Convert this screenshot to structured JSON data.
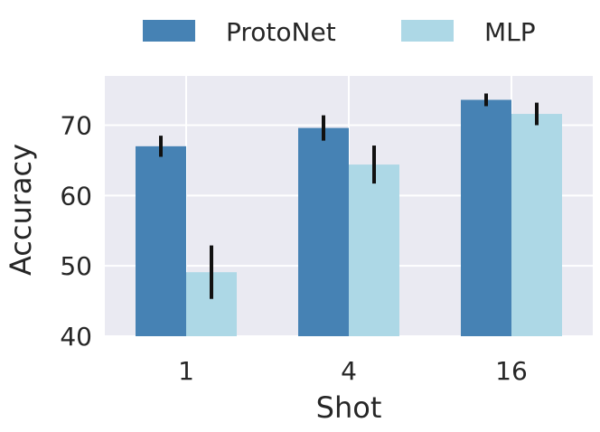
{
  "chart_data": {
    "type": "bar",
    "xlabel": "Shot",
    "ylabel": "Accuracy",
    "categories": [
      "1",
      "4",
      "16"
    ],
    "ylim": [
      40,
      77
    ],
    "yticks": [
      40,
      50,
      60,
      70
    ],
    "grid": true,
    "legend_position": "top",
    "series": [
      {
        "name": "ProtoNet",
        "color": "#4682b4",
        "values": [
          67.0,
          69.6,
          73.6
        ],
        "error": [
          1.5,
          1.8,
          0.9
        ]
      },
      {
        "name": "MLP",
        "color": "#add8e6",
        "values": [
          49.1,
          64.4,
          71.6
        ],
        "error": [
          3.8,
          2.7,
          1.6
        ]
      }
    ],
    "plot_background": "#eaeaf2",
    "errorbar_color": "#111111"
  }
}
